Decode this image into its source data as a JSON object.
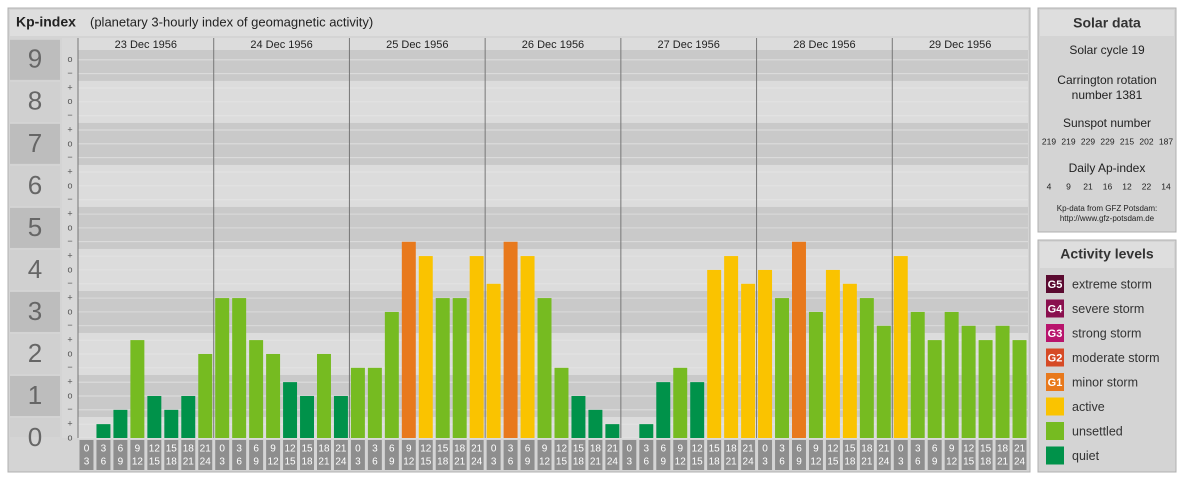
{
  "chart_data": {
    "type": "bar",
    "title": "Kp-index",
    "subtitle": "(planetary 3-hourly index of geomagnetic activity)",
    "ylim": [
      0,
      9.52
    ],
    "yticks": [
      0,
      1,
      2,
      3,
      4,
      5,
      6,
      7,
      8,
      9
    ],
    "minor_yticks": [
      {
        "value": 0,
        "label": "o"
      },
      {
        "value": 0.33,
        "label": "+"
      },
      {
        "value": 0.67,
        "label": "−"
      },
      {
        "value": 1,
        "label": "o"
      },
      {
        "value": 1.33,
        "label": "+"
      },
      {
        "value": 1.67,
        "label": "−"
      },
      {
        "value": 2,
        "label": "o"
      },
      {
        "value": 2.33,
        "label": "+"
      },
      {
        "value": 2.67,
        "label": "−"
      },
      {
        "value": 3,
        "label": "o"
      },
      {
        "value": 3.33,
        "label": "+"
      },
      {
        "value": 3.67,
        "label": "−"
      },
      {
        "value": 4,
        "label": "o"
      },
      {
        "value": 4.33,
        "label": "+"
      },
      {
        "value": 4.67,
        "label": "−"
      },
      {
        "value": 5,
        "label": "o"
      },
      {
        "value": 5.33,
        "label": "+"
      },
      {
        "value": 5.67,
        "label": "−"
      },
      {
        "value": 6,
        "label": "o"
      },
      {
        "value": 6.33,
        "label": "+"
      },
      {
        "value": 6.67,
        "label": "−"
      },
      {
        "value": 7,
        "label": "o"
      },
      {
        "value": 7.33,
        "label": "+"
      },
      {
        "value": 7.67,
        "label": "−"
      },
      {
        "value": 8,
        "label": "o"
      },
      {
        "value": 8.33,
        "label": "+"
      },
      {
        "value": 8.67,
        "label": "−"
      },
      {
        "value": 9,
        "label": "o"
      }
    ],
    "time_slots": [
      [
        "0",
        "3"
      ],
      [
        "3",
        "6"
      ],
      [
        "6",
        "9"
      ],
      [
        "9",
        "12"
      ],
      [
        "12",
        "15"
      ],
      [
        "15",
        "18"
      ],
      [
        "18",
        "21"
      ],
      [
        "21",
        "24"
      ]
    ],
    "days": [
      {
        "date": "23 Dec 1956",
        "values": [
          0,
          0.33,
          0.67,
          2.33,
          1,
          0.67,
          1,
          2
        ],
        "colors": [
          "#00924a",
          "#00924a",
          "#00924a",
          "#76bb21",
          "#00924a",
          "#00924a",
          "#00924a",
          "#76bb21"
        ]
      },
      {
        "date": "24 Dec 1956",
        "values": [
          3.33,
          3.33,
          2.33,
          2,
          1.33,
          1,
          2,
          1
        ],
        "colors": [
          "#76bb21",
          "#76bb21",
          "#76bb21",
          "#76bb21",
          "#00924a",
          "#00924a",
          "#76bb21",
          "#00924a"
        ]
      },
      {
        "date": "25 Dec 1956",
        "values": [
          1.67,
          1.67,
          3,
          4.67,
          4.33,
          3.33,
          3.33,
          4.33
        ],
        "colors": [
          "#76bb21",
          "#76bb21",
          "#76bb21",
          "#e8791c",
          "#fac300",
          "#76bb21",
          "#76bb21",
          "#fac300"
        ]
      },
      {
        "date": "26 Dec 1956",
        "values": [
          3.67,
          4.67,
          4.33,
          3.33,
          1.67,
          1,
          0.67,
          0.33
        ],
        "colors": [
          "#fac300",
          "#e8791c",
          "#fac300",
          "#76bb21",
          "#76bb21",
          "#00924a",
          "#00924a",
          "#00924a"
        ]
      },
      {
        "date": "27 Dec 1956",
        "values": [
          0,
          0.33,
          1.33,
          1.67,
          1.33,
          4,
          4.33,
          3.67
        ],
        "colors": [
          "#00924a",
          "#00924a",
          "#00924a",
          "#76bb21",
          "#00924a",
          "#fac300",
          "#fac300",
          "#fac300"
        ]
      },
      {
        "date": "28 Dec 1956",
        "values": [
          4,
          3.33,
          4.67,
          3,
          4,
          3.67,
          3.33,
          2.67
        ],
        "colors": [
          "#fac300",
          "#76bb21",
          "#e8791c",
          "#76bb21",
          "#fac300",
          "#fac300",
          "#76bb21",
          "#76bb21"
        ]
      },
      {
        "date": "29 Dec 1956",
        "values": [
          4.33,
          3,
          2.33,
          3,
          2.67,
          2.33,
          2.67,
          2.33
        ],
        "colors": [
          "#fac300",
          "#76bb21",
          "#76bb21",
          "#76bb21",
          "#76bb21",
          "#76bb21",
          "#76bb21",
          "#76bb21"
        ]
      }
    ]
  },
  "solar_data": {
    "title": "Solar data",
    "cycle": "Solar cycle 19",
    "carrington": [
      "Carrington rotation",
      "number 1381"
    ],
    "sunspot_title": "Sunspot number",
    "sunspot": [
      219,
      219,
      229,
      229,
      215,
      202,
      187
    ],
    "ap_title": "Daily Ap-index",
    "ap": [
      4,
      9,
      21,
      16,
      12,
      22,
      14
    ],
    "source": [
      "Kp-data from GFZ Potsdam:",
      "http://www.gfz-potsdam.de"
    ]
  },
  "legend": {
    "title": "Activity levels",
    "items": [
      {
        "badge": "G5",
        "label": "extreme storm",
        "color": "#5a0a30"
      },
      {
        "badge": "G4",
        "label": "severe storm",
        "color": "#8a0f4e"
      },
      {
        "badge": "G3",
        "label": "strong storm",
        "color": "#b8146c"
      },
      {
        "badge": "G2",
        "label": "moderate storm",
        "color": "#d64a25"
      },
      {
        "badge": "G1",
        "label": "minor storm",
        "color": "#e8791c"
      },
      {
        "label": "active",
        "color": "#fac300"
      },
      {
        "label": "unsettled",
        "color": "#76bb21"
      },
      {
        "label": "quiet",
        "color": "#00924a"
      }
    ]
  }
}
